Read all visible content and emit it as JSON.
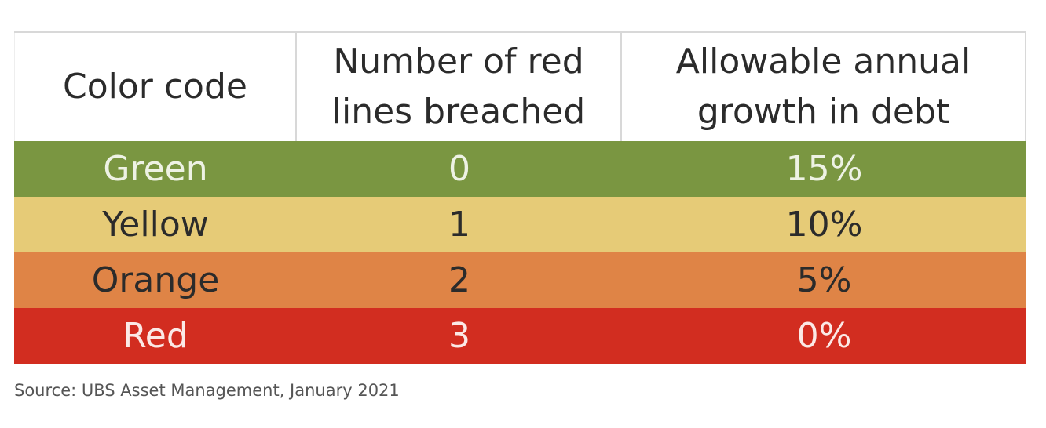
{
  "table": {
    "header": [
      "Color code",
      "Number of red lines breached",
      "Allowable annual growth in debt"
    ],
    "rows": [
      {
        "cells": [
          "Green",
          "0",
          "15%"
        ],
        "color": "#7a9641",
        "text_color": "#eef2e4"
      },
      {
        "cells": [
          "Yellow",
          "1",
          "10%"
        ],
        "color": "#e6cb77",
        "text_color": "#2b2b2b"
      },
      {
        "cells": [
          "Orange",
          "2",
          "5%"
        ],
        "color": "#df8446",
        "text_color": "#2b2b2b"
      },
      {
        "cells": [
          "Red",
          "3",
          "0%"
        ],
        "color": "#d22d20",
        "text_color": "#fbe9e6"
      }
    ]
  },
  "source": "Source: UBS Asset Management, January 2021"
}
